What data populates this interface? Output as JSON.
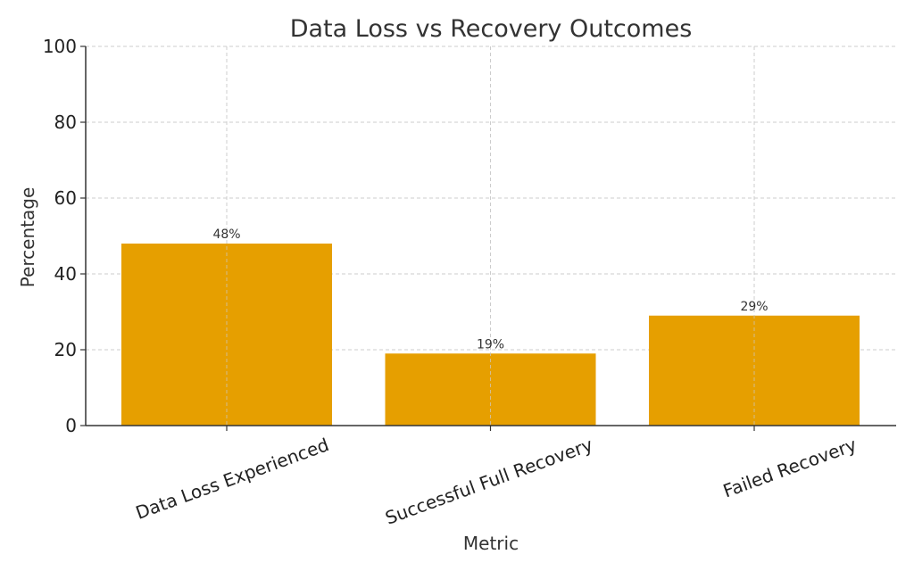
{
  "chart_data": {
    "type": "bar",
    "title": "Data Loss vs Recovery Outcomes",
    "xlabel": "Metric",
    "ylabel": "Percentage",
    "categories": [
      "Data Loss Experienced",
      "Successful Full Recovery",
      "Failed Recovery"
    ],
    "values": [
      48,
      19,
      29
    ],
    "data_labels": [
      "48%",
      "19%",
      "29%"
    ],
    "ylim": [
      0,
      100
    ],
    "yticks": [
      0,
      20,
      40,
      60,
      80,
      100
    ],
    "ytick_labels": [
      "0",
      "20",
      "40",
      "60",
      "80",
      "100"
    ],
    "grid": true,
    "bar_color": "#E69F00"
  }
}
